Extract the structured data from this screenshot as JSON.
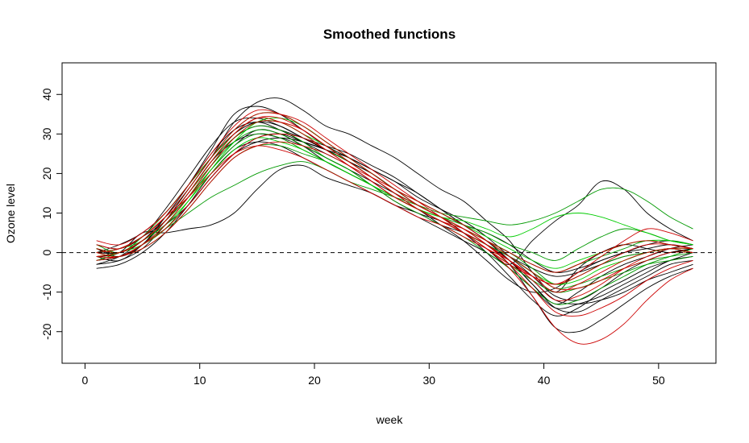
{
  "chart_data": {
    "type": "line",
    "title": "Smoothed functions",
    "xlabel": "week",
    "ylabel": "Ozone level",
    "xlim": [
      -2,
      55
    ],
    "ylim": [
      -28,
      48
    ],
    "x_ticks": [
      0,
      10,
      20,
      30,
      40,
      50
    ],
    "y_ticks": [
      -20,
      -10,
      0,
      10,
      20,
      30,
      40
    ],
    "reference_line": {
      "y": 0,
      "style": "dashed",
      "color": "#000000"
    },
    "grid": false,
    "x": [
      1,
      3,
      5,
      7,
      9,
      11,
      13,
      15,
      17,
      19,
      21,
      23,
      25,
      27,
      29,
      31,
      33,
      35,
      37,
      39,
      41,
      43,
      45,
      47,
      49,
      51,
      53
    ],
    "series": [
      {
        "color": "#000000",
        "values": [
          -1,
          -2,
          2,
          8,
          16,
          24,
          33,
          38,
          39,
          36,
          32,
          30,
          27,
          24,
          20,
          16,
          13,
          8,
          3,
          -5,
          -10,
          -4,
          0,
          2,
          1,
          0,
          1
        ]
      },
      {
        "color": "#000000",
        "values": [
          2,
          1,
          4,
          11,
          19,
          27,
          33,
          34,
          32,
          29,
          26,
          23,
          20,
          16,
          12,
          9,
          5,
          0,
          -6,
          -12,
          -16,
          -14,
          -10,
          -7,
          -4,
          -2,
          0
        ]
      },
      {
        "color": "#000000",
        "values": [
          -3,
          -1,
          3,
          8,
          14,
          21,
          27,
          31,
          30,
          27,
          23,
          20,
          17,
          13,
          10,
          8,
          5,
          2,
          -2,
          -8,
          -14,
          -15,
          -12,
          -9,
          -6,
          -3,
          -2
        ]
      },
      {
        "color": "#000000",
        "values": [
          0,
          2,
          5,
          10,
          17,
          25,
          31,
          33,
          31,
          28,
          25,
          22,
          18,
          14,
          11,
          7,
          3,
          -2,
          -7,
          -10,
          -9,
          -5,
          -2,
          0,
          2,
          3,
          2
        ]
      },
      {
        "color": "#000000",
        "values": [
          -4,
          -3,
          0,
          5,
          12,
          20,
          26,
          28,
          27,
          24,
          21,
          18,
          15,
          12,
          9,
          6,
          3,
          0,
          -4,
          -9,
          -14,
          -13,
          -11,
          -8,
          -5,
          -2,
          -1
        ]
      },
      {
        "color": "#000000",
        "values": [
          1,
          0,
          3,
          9,
          16,
          24,
          30,
          33,
          32,
          29,
          26,
          23,
          19,
          15,
          11,
          8,
          5,
          1,
          -3,
          3,
          8,
          12,
          18,
          16,
          10,
          6,
          3
        ]
      },
      {
        "color": "#000000",
        "values": [
          -2,
          -1,
          2,
          6,
          12,
          19,
          25,
          29,
          30,
          28,
          26,
          24,
          21,
          18,
          14,
          11,
          8,
          4,
          -1,
          -6,
          -11,
          -12,
          -9,
          -5,
          -2,
          0,
          1
        ]
      },
      {
        "color": "#000000",
        "values": [
          0,
          1,
          4,
          8,
          15,
          23,
          28,
          30,
          29,
          27,
          24,
          21,
          18,
          15,
          12,
          9,
          6,
          2,
          -3,
          -11,
          -19,
          -20,
          -17,
          -13,
          -9,
          -6,
          -4
        ]
      },
      {
        "color": "#000000",
        "values": [
          -1,
          0,
          5,
          5,
          6,
          7,
          10,
          16,
          21,
          22,
          19,
          17,
          15,
          12,
          10,
          7,
          5,
          2,
          -1,
          -4,
          -6,
          -5,
          -3,
          -1,
          0,
          1,
          0
        ]
      },
      {
        "color": "#000000",
        "values": [
          1,
          -1,
          2,
          9,
          17,
          26,
          35,
          37,
          35,
          31,
          27,
          24,
          21,
          18,
          15,
          11,
          7,
          3,
          -2,
          -8,
          -13,
          -10,
          -6,
          -3,
          -1,
          1,
          2
        ]
      },
      {
        "color": "#000000",
        "values": [
          -3,
          -2,
          1,
          7,
          14,
          22,
          29,
          32,
          31,
          29,
          27,
          25,
          22,
          19,
          15,
          11,
          7,
          3,
          -2,
          -7,
          -12,
          -13,
          -12,
          -10,
          -7,
          -5,
          -3
        ]
      },
      {
        "color": "#000000",
        "values": [
          0,
          0,
          3,
          7,
          12,
          19,
          25,
          28,
          29,
          28,
          26,
          23,
          20,
          16,
          13,
          10,
          7,
          5,
          2,
          -2,
          -5,
          -4,
          -2,
          0,
          1,
          2,
          1
        ]
      },
      {
        "color": "#009900",
        "values": [
          2,
          0,
          4,
          10,
          17,
          24,
          30,
          34,
          33,
          30,
          26,
          23,
          19,
          15,
          12,
          9,
          6,
          3,
          0,
          -3,
          -5,
          -3,
          -1,
          1,
          3,
          2,
          1
        ]
      },
      {
        "color": "#009900",
        "values": [
          -2,
          0,
          3,
          8,
          15,
          22,
          28,
          31,
          30,
          27,
          24,
          21,
          17,
          14,
          11,
          9,
          7,
          5,
          2,
          0,
          -2,
          1,
          4,
          6,
          5,
          3,
          2
        ]
      },
      {
        "color": "#009900",
        "values": [
          0,
          1,
          4,
          9,
          16,
          24,
          31,
          35,
          35,
          32,
          28,
          24,
          20,
          16,
          12,
          9,
          6,
          3,
          0,
          -4,
          -8,
          -6,
          -3,
          -1,
          0,
          1,
          0
        ]
      },
      {
        "color": "#009900",
        "values": [
          -1,
          -1,
          2,
          6,
          10,
          14,
          17,
          20,
          22,
          23,
          21,
          18,
          16,
          14,
          12,
          10,
          9,
          8,
          7,
          8,
          10,
          13,
          16,
          16,
          13,
          9,
          6
        ]
      },
      {
        "color": "#009900",
        "values": [
          1,
          0,
          3,
          8,
          14,
          21,
          27,
          30,
          29,
          26,
          23,
          20,
          17,
          14,
          11,
          8,
          5,
          2,
          -1,
          -5,
          -9,
          -8,
          -6,
          -4,
          -2,
          -1,
          0
        ]
      },
      {
        "color": "#009900",
        "values": [
          -2,
          -1,
          1,
          5,
          11,
          18,
          24,
          27,
          27,
          25,
          23,
          20,
          17,
          14,
          11,
          8,
          5,
          1,
          -3,
          -7,
          -10,
          -9,
          -7,
          -5,
          -3,
          -2,
          -1
        ]
      },
      {
        "color": "#009900",
        "values": [
          0,
          1,
          3,
          8,
          15,
          23,
          29,
          32,
          31,
          28,
          24,
          21,
          17,
          13,
          10,
          7,
          4,
          0,
          -4,
          -9,
          -13,
          -12,
          -9,
          -6,
          -3,
          -1,
          1
        ]
      },
      {
        "color": "#00cc00",
        "values": [
          1,
          0,
          3,
          7,
          13,
          20,
          26,
          29,
          28,
          26,
          23,
          20,
          17,
          14,
          11,
          9,
          8,
          6,
          4,
          6,
          9,
          10,
          9,
          7,
          5,
          3,
          2
        ]
      },
      {
        "color": "#00cc00",
        "values": [
          -1,
          0,
          2,
          6,
          13,
          21,
          28,
          33,
          34,
          32,
          28,
          24,
          20,
          16,
          13,
          10,
          7,
          4,
          1,
          -2,
          -4,
          -2,
          0,
          2,
          3,
          3,
          2
        ]
      },
      {
        "color": "#00cc00",
        "values": [
          0,
          -1,
          2,
          7,
          14,
          22,
          29,
          33,
          33,
          30,
          27,
          23,
          19,
          15,
          12,
          9,
          6,
          3,
          -1,
          -5,
          -8,
          -7,
          -4,
          -2,
          0,
          1,
          1
        ]
      },
      {
        "color": "#cc0000",
        "values": [
          0,
          -1,
          2,
          7,
          14,
          22,
          29,
          33,
          33,
          31,
          27,
          23,
          19,
          15,
          12,
          9,
          6,
          2,
          -3,
          -9,
          -15,
          -16,
          -14,
          -11,
          -7,
          -4,
          -2
        ]
      },
      {
        "color": "#cc0000",
        "values": [
          -1,
          0,
          3,
          8,
          15,
          23,
          30,
          34,
          33,
          30,
          26,
          22,
          18,
          14,
          11,
          8,
          5,
          2,
          -2,
          -7,
          -12,
          -11,
          -8,
          -4,
          -1,
          1,
          1
        ]
      },
      {
        "color": "#cc0000",
        "values": [
          2,
          1,
          4,
          9,
          16,
          24,
          31,
          35,
          35,
          33,
          29,
          25,
          21,
          17,
          13,
          9,
          5,
          1,
          -4,
          -11,
          -19,
          -23,
          -22,
          -18,
          -12,
          -7,
          -4
        ]
      },
      {
        "color": "#cc0000",
        "values": [
          -2,
          -1,
          1,
          5,
          11,
          18,
          24,
          27,
          28,
          27,
          25,
          22,
          19,
          16,
          12,
          9,
          6,
          2,
          -2,
          -6,
          -8,
          -6,
          -3,
          0,
          2,
          2,
          1
        ]
      },
      {
        "color": "#cc0000",
        "values": [
          1,
          0,
          3,
          8,
          15,
          23,
          30,
          34,
          34,
          31,
          27,
          23,
          19,
          15,
          11,
          8,
          5,
          1,
          -3,
          -6,
          -8,
          -5,
          -1,
          3,
          6,
          5,
          3
        ]
      },
      {
        "color": "#cc0000",
        "values": [
          -1,
          -1,
          2,
          6,
          12,
          19,
          25,
          29,
          30,
          29,
          26,
          22,
          18,
          14,
          11,
          8,
          6,
          3,
          0,
          -3,
          -5,
          -3,
          0,
          2,
          3,
          2,
          1
        ]
      },
      {
        "color": "#cc0000",
        "values": [
          0,
          1,
          4,
          9,
          14,
          20,
          25,
          27,
          26,
          24,
          21,
          18,
          15,
          12,
          9,
          7,
          4,
          1,
          -2,
          -6,
          -10,
          -8,
          -5,
          -2,
          0,
          1,
          0
        ]
      },
      {
        "color": "#cc0000",
        "values": [
          3,
          2,
          5,
          10,
          17,
          25,
          32,
          36,
          35,
          32,
          28,
          24,
          20,
          16,
          13,
          10,
          7,
          3,
          -1,
          -5,
          -9,
          -9,
          -7,
          -4,
          -2,
          0,
          0
        ]
      }
    ]
  }
}
